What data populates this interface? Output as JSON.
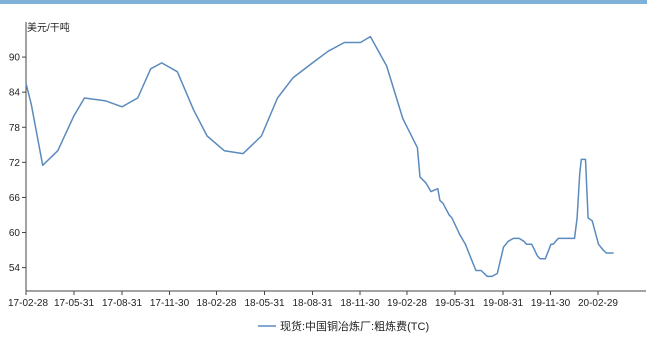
{
  "chart_data": {
    "type": "line",
    "ylabel": "美元/干吨",
    "ylim": [
      50,
      96
    ],
    "yticks": [
      54,
      60,
      66,
      72,
      78,
      84,
      90
    ],
    "xlim": [
      "2017-02-28",
      "2020-05-31"
    ],
    "xticks": [
      "17-02-28",
      "17-05-31",
      "17-08-31",
      "17-11-30",
      "18-02-28",
      "18-05-31",
      "18-08-31",
      "18-11-30",
      "19-02-28",
      "19-05-31",
      "19-08-31",
      "19-11-30",
      "20-02-29"
    ],
    "legend_position": "bottom",
    "grid": false,
    "line_color": "#5b8bbd",
    "series": [
      {
        "name": "现货:中国铜冶炼厂:粗炼费(TC)",
        "x": [
          "2017-02-28",
          "2017-03-10",
          "2017-04-01",
          "2017-04-30",
          "2017-05-31",
          "2017-06-20",
          "2017-07-31",
          "2017-08-31",
          "2017-09-30",
          "2017-10-25",
          "2017-11-15",
          "2017-12-15",
          "2018-01-15",
          "2018-02-10",
          "2018-03-15",
          "2018-04-20",
          "2018-05-25",
          "2018-06-25",
          "2018-07-25",
          "2018-08-31",
          "2018-09-30",
          "2018-10-31",
          "2018-12-01",
          "2018-12-20",
          "2019-01-20",
          "2019-02-20",
          "2019-03-20",
          "2019-03-25",
          "2019-04-05",
          "2019-04-15",
          "2019-04-28",
          "2019-05-02",
          "2019-05-08",
          "2019-05-20",
          "2019-05-25",
          "2019-06-10",
          "2019-06-20",
          "2019-07-01",
          "2019-07-10",
          "2019-07-20",
          "2019-08-01",
          "2019-08-10",
          "2019-08-20",
          "2019-09-01",
          "2019-09-10",
          "2019-09-20",
          "2019-10-01",
          "2019-10-10",
          "2019-10-15",
          "2019-10-25",
          "2019-11-05",
          "2019-11-10",
          "2019-11-20",
          "2019-12-01",
          "2019-12-05",
          "2019-12-15",
          "2020-01-15",
          "2020-01-20",
          "2020-01-25",
          "2020-01-28",
          "2020-02-05",
          "2020-02-10",
          "2020-02-18",
          "2020-03-01",
          "2020-03-10",
          "2020-03-16",
          "2020-03-20",
          "2020-03-25",
          "2020-03-30"
        ],
        "values": [
          85.5,
          82,
          71.5,
          74,
          80,
          83,
          82.5,
          81.5,
          83,
          88,
          89,
          87.5,
          81,
          76.5,
          74,
          73.5,
          76.5,
          83,
          86.5,
          89,
          91,
          92.5,
          92.5,
          93.5,
          88.5,
          79.5,
          74.5,
          69.5,
          68.5,
          67,
          67.5,
          65.5,
          65,
          63,
          62.5,
          59.5,
          58,
          55.5,
          53.5,
          53.5,
          52.5,
          52.5,
          53,
          57.5,
          58.5,
          59,
          59,
          58.5,
          58,
          58,
          56,
          55.5,
          55.5,
          58,
          58,
          59,
          59,
          62.5,
          70,
          72.5,
          72.5,
          62.5,
          62,
          58,
          57,
          56.5,
          56.5,
          56.5,
          56.5
        ]
      }
    ]
  }
}
